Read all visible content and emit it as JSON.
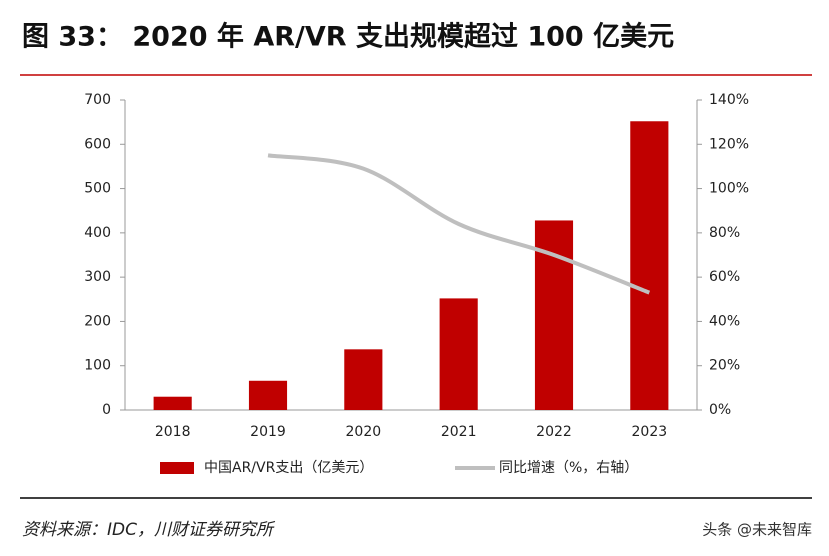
{
  "chart_data": {
    "type": "bar",
    "title": "图 33：  2020 年 AR/VR 支出规模超过 100 亿美元",
    "categories": [
      "2018",
      "2019",
      "2020",
      "2021",
      "2022",
      "2023"
    ],
    "series": [
      {
        "name": "中国AR/VR支出（亿美元）",
        "color": "#c00000",
        "values": [
          30,
          66,
          137,
          252,
          428,
          652
        ]
      },
      {
        "name": "同比增速（%，右轴）",
        "color": "#bfbfbf",
        "axis": "y2",
        "type": "line",
        "values": [
          null,
          115,
          109,
          84,
          70,
          53
        ]
      }
    ],
    "ylim": [
      0,
      700
    ],
    "yticks": [
      0,
      100,
      200,
      300,
      400,
      500,
      600,
      700
    ],
    "y2lim": [
      0,
      140
    ],
    "y2ticks": [
      {
        "value": 0,
        "label": "0%"
      },
      {
        "value": 20,
        "label": "20%"
      },
      {
        "value": 40,
        "label": "40%"
      },
      {
        "value": 60,
        "label": "60%"
      },
      {
        "value": 80,
        "label": "80%"
      },
      {
        "value": 100,
        "label": "100%"
      },
      {
        "value": 120,
        "label": "120%"
      },
      {
        "value": 140,
        "label": "140%"
      }
    ],
    "source": "资料来源：IDC，川财证券研究所",
    "watermark": "头条 @未来智库"
  }
}
